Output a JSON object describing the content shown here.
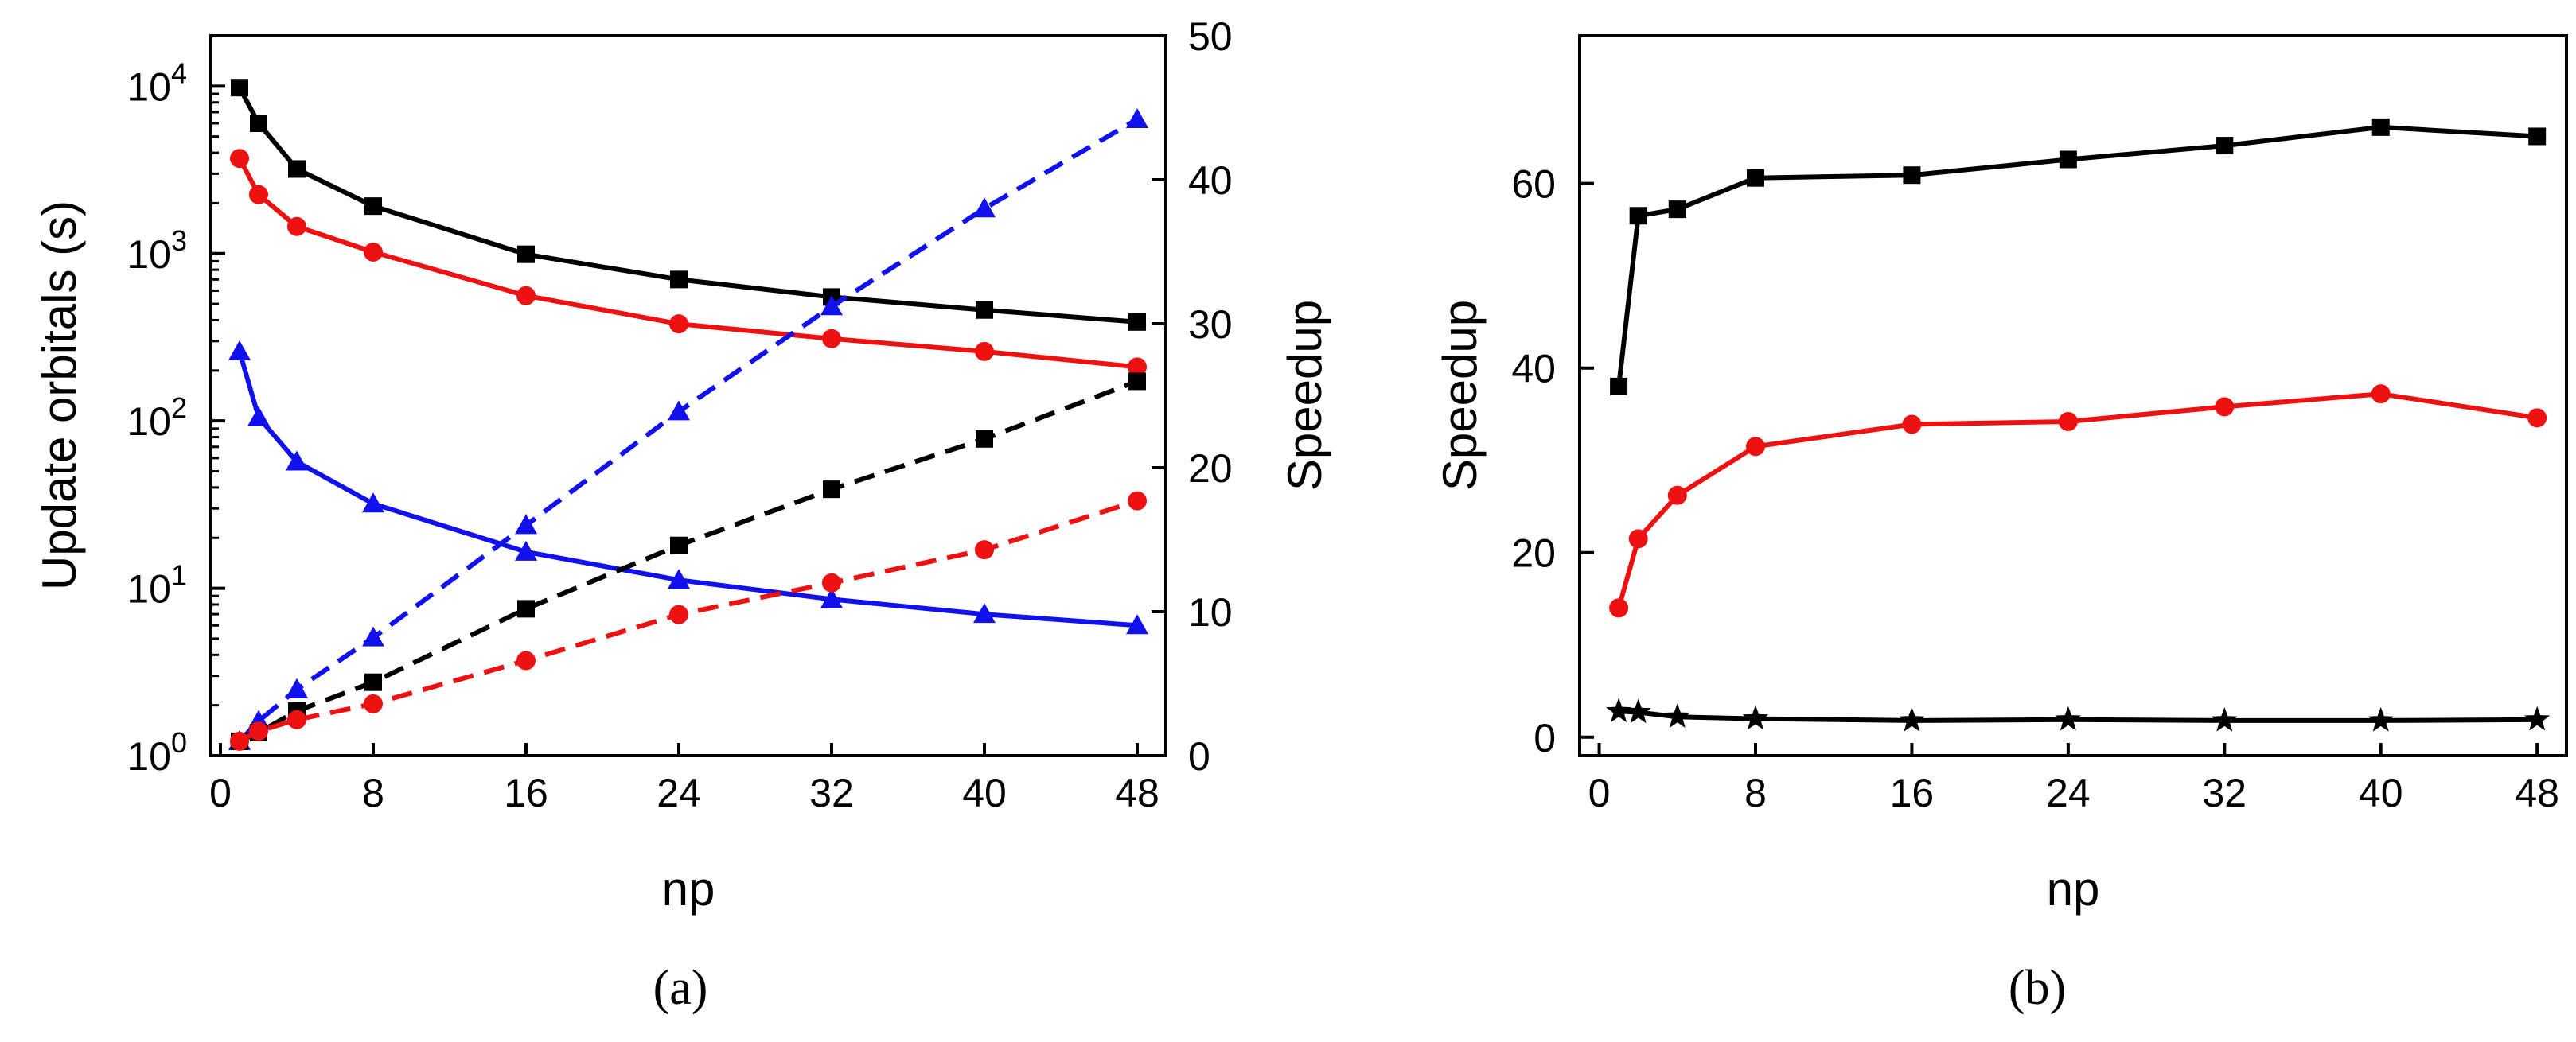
{
  "chart_data": [
    {
      "panel_label": "(a)",
      "type": "line",
      "xlabel": "np",
      "ylabel_left": "Update orbitals (s)",
      "ylabel_right": "Speedup",
      "x_ticks": [
        0,
        8,
        16,
        24,
        32,
        40,
        48
      ],
      "xlim": [
        -0.5,
        49.5
      ],
      "left_axis": {
        "scale": "log",
        "ylim": [
          1,
          20000
        ],
        "tick_base": 10,
        "tick_exponents": [
          0,
          1,
          2,
          3,
          4
        ]
      },
      "right_axis": {
        "scale": "linear",
        "ylim": [
          0,
          50
        ],
        "ticks": [
          0,
          10,
          20,
          30,
          40,
          50
        ]
      },
      "series": [
        {
          "name": "time-black",
          "axis": "left",
          "color": "#000000",
          "marker": "square",
          "dashed": false,
          "x": [
            1,
            2,
            4,
            8,
            16,
            24,
            32,
            40,
            48
          ],
          "values": [
            9800,
            6000,
            3200,
            1920,
            990,
            700,
            550,
            460,
            390
          ]
        },
        {
          "name": "time-red",
          "axis": "left",
          "color": "#ee1111",
          "marker": "circle",
          "dashed": false,
          "x": [
            1,
            2,
            4,
            8,
            16,
            24,
            32,
            40,
            48
          ],
          "values": [
            3700,
            2250,
            1450,
            1020,
            560,
            380,
            310,
            260,
            210
          ]
        },
        {
          "name": "time-blue",
          "axis": "left",
          "color": "#1111ee",
          "marker": "triangle",
          "dashed": false,
          "x": [
            1,
            2,
            4,
            8,
            16,
            24,
            32,
            40,
            48
          ],
          "values": [
            260,
            105,
            57,
            32,
            16.5,
            11.2,
            8.6,
            7.0,
            6.0
          ]
        },
        {
          "name": "speedup-blue",
          "axis": "right",
          "color": "#1111ee",
          "marker": "triangle",
          "dashed": true,
          "x": [
            1,
            2,
            4,
            8,
            16,
            24,
            32,
            40,
            48
          ],
          "values": [
            1.0,
            2.4,
            4.6,
            8.2,
            16.0,
            23.9,
            31.2,
            38.0,
            44.2
          ]
        },
        {
          "name": "speedup-black",
          "axis": "right",
          "color": "#000000",
          "marker": "square",
          "dashed": true,
          "x": [
            1,
            2,
            4,
            8,
            16,
            24,
            32,
            40,
            48
          ],
          "values": [
            1.0,
            1.6,
            3.1,
            5.1,
            10.2,
            14.6,
            18.5,
            22.0,
            26.0
          ]
        },
        {
          "name": "speedup-red",
          "axis": "right",
          "color": "#ee1111",
          "marker": "circle",
          "dashed": true,
          "x": [
            1,
            2,
            4,
            8,
            16,
            24,
            32,
            40,
            48
          ],
          "values": [
            1.0,
            1.7,
            2.5,
            3.6,
            6.6,
            9.8,
            12.0,
            14.3,
            17.7
          ]
        }
      ]
    },
    {
      "panel_label": "(b)",
      "type": "line",
      "xlabel": "np",
      "ylabel": "Speedup",
      "x_ticks": [
        0,
        8,
        16,
        24,
        32,
        40,
        48
      ],
      "xlim": [
        -1,
        49.5
      ],
      "ylim": [
        -2,
        76
      ],
      "y_ticks": [
        0,
        20,
        40,
        60
      ],
      "series": [
        {
          "name": "speedup-black",
          "color": "#000000",
          "marker": "square",
          "dashed": false,
          "x": [
            1,
            2,
            4,
            8,
            16,
            24,
            32,
            40,
            48
          ],
          "values": [
            38.0,
            56.5,
            57.2,
            60.6,
            60.9,
            62.6,
            64.1,
            66.1,
            65.1
          ]
        },
        {
          "name": "speedup-red",
          "color": "#ee1111",
          "marker": "circle",
          "dashed": false,
          "x": [
            1,
            2,
            4,
            8,
            16,
            24,
            32,
            40,
            48
          ],
          "values": [
            14.0,
            21.5,
            26.2,
            31.5,
            33.9,
            34.2,
            35.8,
            37.2,
            34.6
          ]
        },
        {
          "name": "speedup-star",
          "color": "#000000",
          "marker": "star",
          "dashed": false,
          "x": [
            1,
            2,
            4,
            8,
            16,
            24,
            32,
            40,
            48
          ],
          "values": [
            2.8,
            2.7,
            2.2,
            2.0,
            1.8,
            1.9,
            1.8,
            1.8,
            1.9
          ]
        }
      ]
    }
  ]
}
